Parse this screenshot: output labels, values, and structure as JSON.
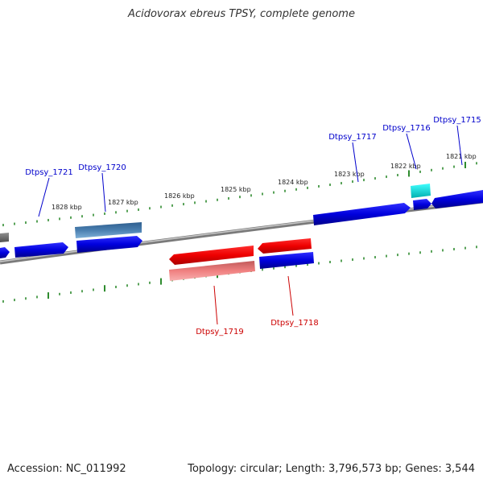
{
  "title": "Acidovorax ebreus TPSY, complete genome",
  "footer": {
    "accession_label": "Accession:",
    "accession": "NC_011992",
    "topology_label": "Topology:",
    "topology": "circular",
    "length_label": "Length:",
    "length": "3,796,573 bp",
    "genes_label": "Genes:",
    "genes": "3,544"
  },
  "scale_labels": [
    "1828 kbp",
    "1827 kbp",
    "1826 kbp",
    "1825 kbp",
    "1824 kbp",
    "1823 kbp",
    "1822 kbp",
    "1821 kbp"
  ],
  "gene_labels": {
    "forward": [
      "Dtpsy_1721",
      "Dtpsy_1720",
      "Dtpsy_1717",
      "Dtpsy_1716",
      "Dtpsy_1715"
    ],
    "reverse": [
      "Dtpsy_1719",
      "Dtpsy_1718"
    ]
  },
  "colors": {
    "forward_label": "#0000cc",
    "reverse_label": "#cc0000",
    "cds_blue": "#0000dd",
    "cds_steel": "#4a7fb0",
    "cds_red": "#ee0000",
    "cds_pink": "#f08080",
    "cds_cyan": "#00dddd",
    "backbone": "#808080",
    "tick": "#2e8b2e"
  }
}
